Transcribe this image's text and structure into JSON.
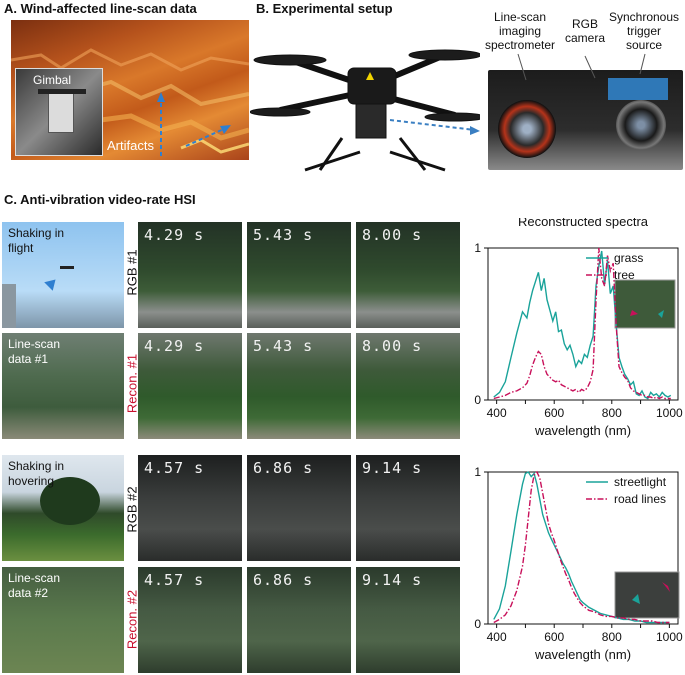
{
  "panels": {
    "a_title": "A. Wind-affected line-scan data",
    "a_gimbal": "Gimbal",
    "a_artifacts": "Artifacts",
    "b_title": "B. Experimental setup",
    "b_spectrometer": [
      "Line-scan",
      "imaging",
      "spectrometer"
    ],
    "b_camera": [
      "RGB",
      "camera"
    ],
    "b_trigger": [
      "Synchronous",
      "trigger",
      "source"
    ],
    "c_title": "C. Anti-vibration video-rate HSI"
  },
  "rows": [
    {
      "side": [
        "Shaking in",
        "flight"
      ],
      "rot": "RGB #1",
      "rot_color": "#111111",
      "times": [
        "4.29 s",
        "5.43 s",
        "8.00 s"
      ]
    },
    {
      "side": [
        "Line-scan",
        "data #1"
      ],
      "rot": "Recon. #1",
      "rot_color": "#c8102e",
      "times": [
        "4.29 s",
        "5.43 s",
        "8.00 s"
      ]
    },
    {
      "side": [
        "Shaking in",
        "hovering"
      ],
      "rot": "RGB #2",
      "rot_color": "#111111",
      "times": [
        "4.57 s",
        "6.86 s",
        "9.14 s"
      ]
    },
    {
      "side": [
        "Line-scan",
        "data #2"
      ],
      "rot": "Recon. #2",
      "rot_color": "#c8102e",
      "times": [
        "4.57 s",
        "6.86 s",
        "9.14 s"
      ]
    }
  ],
  "chart_data": [
    {
      "type": "line",
      "title": "Reconstructed spectra",
      "xlabel": "wavelength (nm)",
      "ylabel": "",
      "xlim": [
        370,
        1030
      ],
      "ylim": [
        0,
        1
      ],
      "xticks": [
        400,
        500,
        600,
        700,
        800,
        900,
        1000
      ],
      "yticks": [
        0,
        1
      ],
      "legend": "top-right",
      "grid": false,
      "series": [
        {
          "name": "grass",
          "color": "#1aa39a",
          "style": "solid",
          "x": [
            390,
            410,
            430,
            450,
            470,
            490,
            505,
            515,
            525,
            535,
            545,
            555,
            565,
            575,
            585,
            595,
            605,
            615,
            625,
            635,
            645,
            655,
            665,
            675,
            685,
            695,
            705,
            715,
            725,
            735,
            745,
            755,
            765,
            775,
            785,
            795,
            805,
            815,
            825,
            835,
            845,
            855,
            865,
            875,
            885,
            895,
            905,
            915,
            925,
            935,
            945,
            955,
            965,
            975,
            985,
            995,
            1005
          ],
          "y": [
            0.02,
            0.05,
            0.12,
            0.28,
            0.44,
            0.58,
            0.54,
            0.64,
            0.72,
            0.78,
            0.84,
            0.72,
            0.8,
            0.66,
            0.59,
            0.52,
            0.58,
            0.45,
            0.46,
            0.37,
            0.33,
            0.36,
            0.3,
            0.22,
            0.26,
            0.24,
            0.3,
            0.28,
            0.36,
            0.42,
            0.75,
            0.88,
            0.98,
            0.76,
            0.92,
            0.7,
            0.75,
            0.5,
            0.28,
            0.22,
            0.17,
            0.14,
            0.1,
            0.12,
            0.04,
            0.03,
            0.06,
            0.02,
            0.01,
            0.05,
            0.03,
            0.04,
            0.02,
            0.05,
            0.03,
            0.02,
            0.03
          ]
        },
        {
          "name": "tree",
          "color": "#c8105a",
          "style": "dashdot",
          "x": [
            390,
            410,
            430,
            450,
            470,
            490,
            505,
            515,
            525,
            535,
            545,
            555,
            565,
            575,
            585,
            595,
            605,
            615,
            625,
            635,
            645,
            655,
            665,
            675,
            685,
            695,
            705,
            715,
            725,
            735,
            745,
            755,
            765,
            775,
            785,
            795,
            805,
            815,
            825,
            835,
            845,
            855,
            865,
            875,
            885,
            895,
            905,
            915,
            925,
            935,
            945,
            955,
            965,
            975,
            985,
            995,
            1005
          ],
          "y": [
            0.01,
            0.02,
            0.03,
            0.05,
            0.06,
            0.08,
            0.11,
            0.16,
            0.23,
            0.28,
            0.32,
            0.3,
            0.22,
            0.17,
            0.15,
            0.13,
            0.12,
            0.13,
            0.1,
            0.09,
            0.08,
            0.07,
            0.06,
            0.07,
            0.05,
            0.07,
            0.06,
            0.08,
            0.12,
            0.2,
            0.65,
            1.0,
            0.8,
            0.75,
            0.95,
            0.85,
            0.9,
            0.5,
            0.22,
            0.18,
            0.15,
            0.13,
            0.08,
            0.06,
            0.05,
            0.04,
            0.03,
            0.03,
            0.02,
            0.02,
            0.01,
            0.02,
            0.01,
            0.02,
            0.01,
            0.01,
            0.01
          ]
        }
      ]
    },
    {
      "type": "line",
      "title": "",
      "xlabel": "wavelength (nm)",
      "ylabel": "",
      "xlim": [
        370,
        1030
      ],
      "ylim": [
        0,
        1
      ],
      "xticks": [
        400,
        500,
        600,
        700,
        800,
        900,
        1000
      ],
      "yticks": [
        0,
        1
      ],
      "legend": "top-right",
      "grid": false,
      "series": [
        {
          "name": "streetlight",
          "color": "#1aa39a",
          "style": "solid",
          "x": [
            390,
            410,
            430,
            450,
            470,
            490,
            500,
            510,
            520,
            530,
            540,
            550,
            560,
            570,
            580,
            590,
            600,
            610,
            620,
            630,
            640,
            650,
            660,
            670,
            680,
            690,
            700,
            720,
            740,
            760,
            780,
            800,
            820,
            840,
            860,
            880,
            900,
            920,
            940,
            960,
            980,
            1000
          ],
          "y": [
            0.03,
            0.1,
            0.25,
            0.48,
            0.72,
            0.92,
            0.99,
            1.0,
            0.97,
            0.99,
            0.92,
            0.82,
            0.72,
            0.66,
            0.6,
            0.56,
            0.52,
            0.48,
            0.44,
            0.4,
            0.37,
            0.33,
            0.28,
            0.24,
            0.2,
            0.16,
            0.14,
            0.11,
            0.09,
            0.07,
            0.06,
            0.05,
            0.04,
            0.03,
            0.03,
            0.02,
            0.02,
            0.01,
            0.01,
            0.01,
            0.01,
            0.01
          ]
        },
        {
          "name": "road lines",
          "color": "#c8105a",
          "style": "dashdot",
          "x": [
            390,
            410,
            430,
            450,
            470,
            490,
            500,
            510,
            520,
            530,
            540,
            550,
            560,
            570,
            580,
            590,
            600,
            610,
            620,
            630,
            640,
            650,
            660,
            670,
            680,
            690,
            700,
            720,
            740,
            760,
            780,
            800,
            820,
            840,
            860,
            880,
            900,
            920,
            940,
            960,
            980,
            1000
          ],
          "y": [
            0.01,
            0.03,
            0.06,
            0.12,
            0.22,
            0.38,
            0.52,
            0.7,
            0.88,
            0.98,
            1.0,
            0.96,
            0.86,
            0.76,
            0.66,
            0.6,
            0.55,
            0.49,
            0.43,
            0.38,
            0.33,
            0.29,
            0.24,
            0.2,
            0.17,
            0.14,
            0.12,
            0.09,
            0.08,
            0.06,
            0.05,
            0.05,
            0.04,
            0.04,
            0.03,
            0.03,
            0.02,
            0.02,
            0.02,
            0.01,
            0.01,
            0.01
          ]
        }
      ]
    }
  ]
}
